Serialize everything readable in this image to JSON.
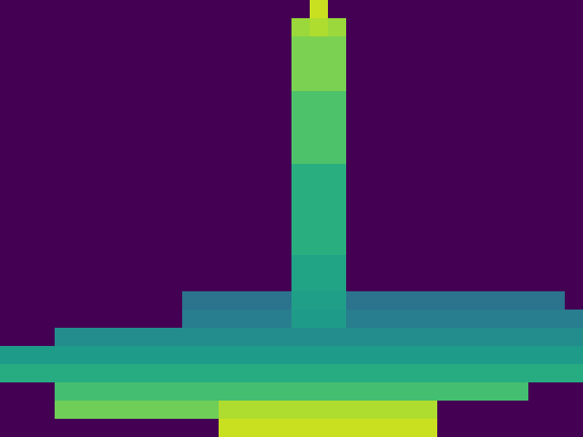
{
  "chart_data": {
    "type": "heatmap",
    "color": "Viridis",
    "zlim": [
      0,
      1
    ],
    "tick_labels": false,
    "cells": [
      [
        0,
        0,
        0,
        0,
        0,
        0,
        0,
        0,
        0,
        0,
        0,
        0,
        0,
        0,
        0,
        0,
        0,
        0.92,
        0,
        0,
        0,
        0,
        0,
        0,
        0,
        0,
        0,
        0,
        0,
        0,
        0,
        0
      ],
      [
        0,
        0,
        0,
        0,
        0,
        0,
        0,
        0,
        0,
        0,
        0,
        0,
        0,
        0,
        0,
        0,
        0.85,
        0.88,
        0.85,
        0,
        0,
        0,
        0,
        0,
        0,
        0,
        0,
        0,
        0,
        0,
        0,
        0
      ],
      [
        0,
        0,
        0,
        0,
        0,
        0,
        0,
        0,
        0,
        0,
        0,
        0,
        0,
        0,
        0,
        0,
        0.8,
        0.8,
        0.8,
        0,
        0,
        0,
        0,
        0,
        0,
        0,
        0,
        0,
        0,
        0,
        0,
        0
      ],
      [
        0,
        0,
        0,
        0,
        0,
        0,
        0,
        0,
        0,
        0,
        0,
        0,
        0,
        0,
        0,
        0,
        0.8,
        0.8,
        0.8,
        0,
        0,
        0,
        0,
        0,
        0,
        0,
        0,
        0,
        0,
        0,
        0,
        0
      ],
      [
        0,
        0,
        0,
        0,
        0,
        0,
        0,
        0,
        0,
        0,
        0,
        0,
        0,
        0,
        0,
        0,
        0.8,
        0.8,
        0.8,
        0,
        0,
        0,
        0,
        0,
        0,
        0,
        0,
        0,
        0,
        0,
        0,
        0
      ],
      [
        0,
        0,
        0,
        0,
        0,
        0,
        0,
        0,
        0,
        0,
        0,
        0,
        0,
        0,
        0,
        0,
        0.72,
        0.72,
        0.72,
        0,
        0,
        0,
        0,
        0,
        0,
        0,
        0,
        0,
        0,
        0,
        0,
        0
      ],
      [
        0,
        0,
        0,
        0,
        0,
        0,
        0,
        0,
        0,
        0,
        0,
        0,
        0,
        0,
        0,
        0,
        0.72,
        0.72,
        0.72,
        0,
        0,
        0,
        0,
        0,
        0,
        0,
        0,
        0,
        0,
        0,
        0,
        0
      ],
      [
        0,
        0,
        0,
        0,
        0,
        0,
        0,
        0,
        0,
        0,
        0,
        0,
        0,
        0,
        0,
        0,
        0.72,
        0.72,
        0.72,
        0,
        0,
        0,
        0,
        0,
        0,
        0,
        0,
        0,
        0,
        0,
        0,
        0
      ],
      [
        0,
        0,
        0,
        0,
        0,
        0,
        0,
        0,
        0,
        0,
        0,
        0,
        0,
        0,
        0,
        0,
        0.72,
        0.72,
        0.72,
        0,
        0,
        0,
        0,
        0,
        0,
        0,
        0,
        0,
        0,
        0,
        0,
        0
      ],
      [
        0,
        0,
        0,
        0,
        0,
        0,
        0,
        0,
        0,
        0,
        0,
        0,
        0,
        0,
        0,
        0,
        0.63,
        0.63,
        0.63,
        0,
        0,
        0,
        0,
        0,
        0,
        0,
        0,
        0,
        0,
        0,
        0,
        0
      ],
      [
        0,
        0,
        0,
        0,
        0,
        0,
        0,
        0,
        0,
        0,
        0,
        0,
        0,
        0,
        0,
        0,
        0.63,
        0.63,
        0.63,
        0,
        0,
        0,
        0,
        0,
        0,
        0,
        0,
        0,
        0,
        0,
        0,
        0
      ],
      [
        0,
        0,
        0,
        0,
        0,
        0,
        0,
        0,
        0,
        0,
        0,
        0,
        0,
        0,
        0,
        0,
        0.63,
        0.63,
        0.63,
        0,
        0,
        0,
        0,
        0,
        0,
        0,
        0,
        0,
        0,
        0,
        0,
        0
      ],
      [
        0,
        0,
        0,
        0,
        0,
        0,
        0,
        0,
        0,
        0,
        0,
        0,
        0,
        0,
        0,
        0,
        0.63,
        0.63,
        0.63,
        0,
        0,
        0,
        0,
        0,
        0,
        0,
        0,
        0,
        0,
        0,
        0,
        0
      ],
      [
        0,
        0,
        0,
        0,
        0,
        0,
        0,
        0,
        0,
        0,
        0,
        0,
        0,
        0,
        0,
        0,
        0.63,
        0.63,
        0.63,
        0,
        0,
        0,
        0,
        0,
        0,
        0,
        0,
        0,
        0,
        0,
        0,
        0
      ],
      [
        0,
        0,
        0,
        0,
        0,
        0,
        0,
        0,
        0,
        0,
        0,
        0,
        0,
        0,
        0,
        0,
        0.58,
        0.58,
        0.58,
        0,
        0,
        0,
        0,
        0,
        0,
        0,
        0,
        0,
        0,
        0,
        0,
        0
      ],
      [
        0,
        0,
        0,
        0,
        0,
        0,
        0,
        0,
        0,
        0,
        0,
        0,
        0,
        0,
        0,
        0,
        0.58,
        0.58,
        0.58,
        0,
        0,
        0,
        0,
        0,
        0,
        0,
        0,
        0,
        0,
        0,
        0,
        0
      ],
      [
        0,
        0,
        0,
        0,
        0,
        0,
        0,
        0,
        0,
        0,
        0.38,
        0.38,
        0.38,
        0.38,
        0.38,
        0.38,
        0.56,
        0.56,
        0.56,
        0.38,
        0.38,
        0.38,
        0.38,
        0.38,
        0.38,
        0.38,
        0.38,
        0.38,
        0.38,
        0.38,
        0.38,
        0
      ],
      [
        0,
        0,
        0,
        0,
        0,
        0,
        0,
        0,
        0,
        0,
        0.42,
        0.42,
        0.42,
        0.42,
        0.42,
        0.42,
        0.55,
        0.55,
        0.55,
        0.42,
        0.42,
        0.42,
        0.42,
        0.42,
        0.42,
        0.42,
        0.42,
        0.42,
        0.42,
        0.42,
        0.42,
        0.42
      ],
      [
        0,
        0,
        0,
        0.48,
        0.48,
        0.48,
        0.48,
        0.48,
        0.48,
        0.48,
        0.48,
        0.48,
        0.48,
        0.48,
        0.48,
        0.48,
        0.48,
        0.48,
        0.48,
        0.48,
        0.48,
        0.48,
        0.48,
        0.48,
        0.48,
        0.48,
        0.48,
        0.48,
        0.48,
        0.48,
        0.48,
        0.48
      ],
      [
        0.55,
        0.55,
        0.55,
        0.55,
        0.55,
        0.55,
        0.55,
        0.55,
        0.55,
        0.55,
        0.55,
        0.55,
        0.55,
        0.55,
        0.55,
        0.55,
        0.55,
        0.55,
        0.55,
        0.55,
        0.55,
        0.55,
        0.55,
        0.55,
        0.55,
        0.55,
        0.55,
        0.55,
        0.55,
        0.55,
        0.55,
        0.55
      ],
      [
        0.62,
        0.62,
        0.62,
        0.62,
        0.62,
        0.62,
        0.62,
        0.62,
        0.62,
        0.62,
        0.62,
        0.62,
        0.62,
        0.62,
        0.62,
        0.62,
        0.62,
        0.62,
        0.62,
        0.62,
        0.62,
        0.62,
        0.62,
        0.62,
        0.62,
        0.62,
        0.62,
        0.62,
        0.62,
        0.62,
        0.62,
        0.62
      ],
      [
        0,
        0,
        0,
        0.7,
        0.7,
        0.7,
        0.7,
        0.7,
        0.7,
        0.7,
        0.7,
        0.7,
        0.7,
        0.7,
        0.7,
        0.7,
        0.7,
        0.7,
        0.7,
        0.7,
        0.7,
        0.7,
        0.7,
        0.7,
        0.7,
        0.7,
        0.7,
        0.7,
        0.7,
        0,
        0,
        0
      ],
      [
        0,
        0,
        0,
        0.78,
        0.78,
        0.78,
        0.78,
        0.78,
        0.78,
        0.78,
        0.78,
        0.78,
        0.88,
        0.88,
        0.88,
        0.88,
        0.88,
        0.88,
        0.88,
        0.88,
        0.88,
        0.88,
        0.88,
        0.88,
        0,
        0,
        0,
        0,
        0,
        0,
        0,
        0
      ],
      [
        0,
        0,
        0,
        0,
        0,
        0,
        0,
        0,
        0,
        0,
        0,
        0,
        0.92,
        0.92,
        0.92,
        0.92,
        0.92,
        0.92,
        0.92,
        0.92,
        0.92,
        0.92,
        0.92,
        0.92,
        0,
        0,
        0,
        0,
        0,
        0,
        0,
        0
      ]
    ]
  }
}
